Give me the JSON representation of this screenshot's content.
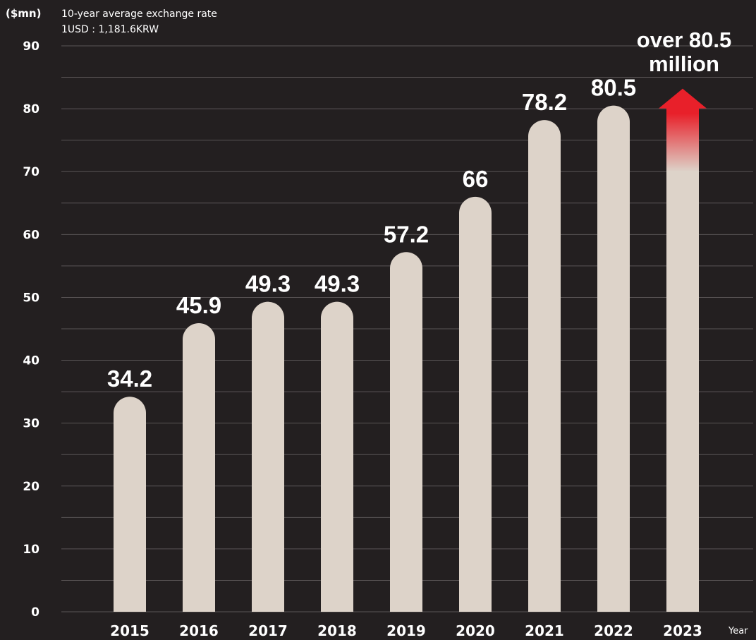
{
  "chart_data": {
    "type": "bar",
    "unit_label": "($mn)",
    "note_lines": [
      "10-year average exchange rate",
      "1USD : 1,181.6KRW"
    ],
    "xlabel": "Year",
    "ylabel": "($mn)",
    "ylim": [
      0,
      90
    ],
    "y_ticks": [
      0,
      10,
      20,
      30,
      40,
      50,
      60,
      70,
      80,
      90
    ],
    "categories": [
      "2015",
      "2016",
      "2017",
      "2018",
      "2019",
      "2020",
      "2021",
      "2022",
      "2023"
    ],
    "values": [
      34.2,
      45.9,
      49.3,
      49.3,
      57.2,
      66,
      78.2,
      80.5,
      80.5
    ],
    "data_labels": [
      "34.2",
      "45.9",
      "49.3",
      "49.3",
      "57.2",
      "66",
      "78.2",
      "80.5",
      null
    ],
    "projection": {
      "category": "2023",
      "label_lines": [
        "over 80.5",
        "million"
      ],
      "arrow_color": "#e8202a"
    },
    "grid": true,
    "colors": {
      "background": "#231f20",
      "bar": "#ddd3c9",
      "text": "#ffffff",
      "grid_line": "#5a5556"
    }
  }
}
